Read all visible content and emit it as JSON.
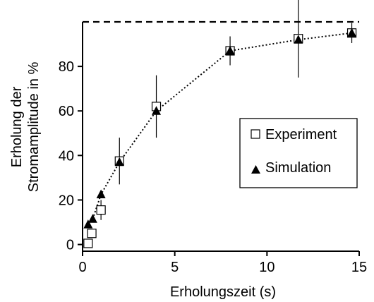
{
  "chart_data": {
    "type": "scatter",
    "xlabel": "Erholungszeit  (s)",
    "ylabel_lines": [
      "Erholung der",
      "Stromamplitude in %"
    ],
    "xlim": [
      0,
      15
    ],
    "ylim": [
      -3,
      100
    ],
    "x_ticks": [
      0,
      5,
      10,
      15
    ],
    "y_ticks": [
      0,
      20,
      40,
      60,
      80
    ],
    "reference_line_y": 100,
    "legend_position": "right",
    "series": [
      {
        "name": "Experiment",
        "marker": "open-square",
        "x": [
          0.3,
          0.5,
          1.0,
          2.0,
          4.0,
          8.0,
          11.7,
          14.6
        ],
        "y": [
          0.5,
          5,
          15.5,
          37.5,
          62,
          87,
          92.5,
          95
        ],
        "err": [
          0,
          0,
          4.5,
          10.5,
          14,
          6.5,
          17.5,
          4.5
        ]
      },
      {
        "name": "Simulation",
        "marker": "filled-triangle",
        "x": [
          0.3,
          0.55,
          1.0,
          2.0,
          4.0,
          8.0,
          11.7,
          14.6
        ],
        "y": [
          9,
          11.5,
          22.5,
          37,
          60,
          87,
          92,
          95
        ]
      }
    ]
  },
  "colors": {
    "axis": "#000000",
    "marker_fill_open": "#ffffff",
    "marker_fill_solid": "#000000"
  }
}
